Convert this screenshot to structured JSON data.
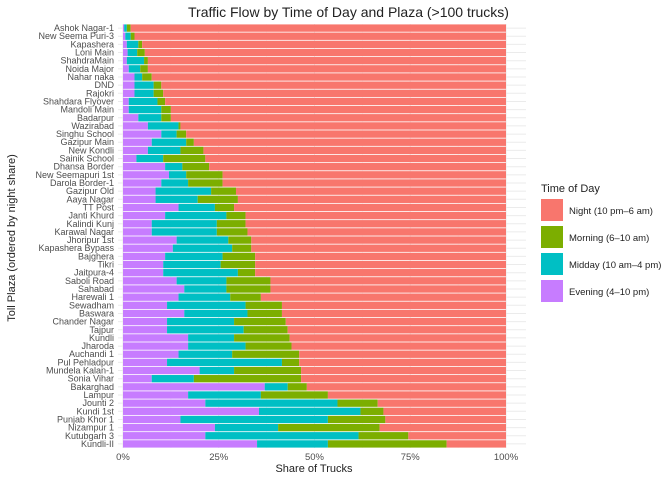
{
  "chart_data": {
    "type": "bar",
    "orientation": "horizontal",
    "stacked": true,
    "title": "Traffic Flow by Time of Day and Plaza (>100 trucks)",
    "xlabel": "Share of Trucks",
    "ylabel": "Toll Plaza (ordered by night share)",
    "xlim": [
      0,
      1
    ],
    "xticks": [
      0,
      0.25,
      0.5,
      0.75,
      1
    ],
    "xtick_labels": [
      "0%",
      "25%",
      "50%",
      "75%",
      "100%"
    ],
    "grid": true,
    "legend": {
      "title": "Time of Day",
      "position": "right"
    },
    "series_order": [
      "Evening",
      "Midday",
      "Morning",
      "Night"
    ],
    "series": [
      {
        "key": "Night",
        "name": "Night (10 pm–6 am)",
        "color": "#F8766D"
      },
      {
        "key": "Morning",
        "name": "Morning (6–10 am)",
        "color": "#7CAE00"
      },
      {
        "key": "Midday",
        "name": "Midday (10 am–4 pm)",
        "color": "#00BFC4"
      },
      {
        "key": "Evening",
        "name": "Evening (4–10 pm)",
        "color": "#C77CFF"
      }
    ],
    "categories": [
      "Ashok Nagar-1",
      "New Seema Puri-3",
      "Kapashera",
      "Loni Main",
      "ShahdraMain",
      "Noida Major",
      "Nahar naka",
      "DND",
      "Rajokri",
      "Shahdara Flyover",
      "Mandoli Main",
      "Badarpur",
      "Wazirabad",
      "Singhu School",
      "Gazipur Main",
      "New Kondli",
      "Sainik School",
      "Dhansa Border",
      "New Seemapuri 1st",
      "Darola Border-1",
      "Gazipur Old",
      "Aaya Nagar",
      "TT Post",
      "Janti Khurd",
      "Kalindi Kunj",
      "Karawal Nagar",
      "Jhoripur 1st",
      "Kapashera Bypass",
      "Bajghera",
      "Tikri",
      "Jaitpura-4",
      "Saboli Road",
      "Sahabad",
      "Harewali 1",
      "Sewadham",
      "Baswara",
      "Chander Nagar",
      "Tajpur",
      "Kundli",
      "Jharoda",
      "Auchandi 1",
      "Pul Pehladpur",
      "Mundela Kalan-1",
      "Sonia Vihar",
      "Bakarghad",
      "Lampur",
      "Jounti 2",
      "Kundi 1st",
      "Punjab Khor 1",
      "Nizampur 1",
      "Kutubgarh 3",
      "Kundli-II"
    ],
    "values": {
      "Evening": [
        0.003,
        0.006,
        0.01,
        0.012,
        0.01,
        0.015,
        0.03,
        0.03,
        0.03,
        0.015,
        0.015,
        0.04,
        0.065,
        0.1,
        0.075,
        0.065,
        0.035,
        0.11,
        0.12,
        0.1,
        0.085,
        0.085,
        0.145,
        0.11,
        0.075,
        0.075,
        0.14,
        0.13,
        0.11,
        0.105,
        0.105,
        0.14,
        0.16,
        0.145,
        0.115,
        0.16,
        0.115,
        0.115,
        0.17,
        0.17,
        0.145,
        0.115,
        0.2,
        0.075,
        0.37,
        0.17,
        0.215,
        0.355,
        0.15,
        0.24,
        0.215,
        0.35
      ],
      "Midday": [
        0.007,
        0.014,
        0.03,
        0.025,
        0.045,
        0.03,
        0.02,
        0.05,
        0.05,
        0.075,
        0.085,
        0.06,
        0.08,
        0.04,
        0.09,
        0.085,
        0.07,
        0.045,
        0.045,
        0.07,
        0.145,
        0.11,
        0.095,
        0.16,
        0.17,
        0.17,
        0.135,
        0.155,
        0.15,
        0.15,
        0.195,
        0.13,
        0.11,
        0.135,
        0.205,
        0.165,
        0.175,
        0.2,
        0.12,
        0.15,
        0.14,
        0.3,
        0.09,
        0.11,
        0.06,
        0.19,
        0.345,
        0.265,
        0.385,
        0.165,
        0.4,
        0.185
      ],
      "Morning": [
        0.01,
        0.01,
        0.01,
        0.02,
        0.01,
        0.02,
        0.025,
        0.02,
        0.025,
        0.02,
        0.025,
        0.025,
        0.005,
        0.025,
        0.02,
        0.06,
        0.11,
        0.07,
        0.095,
        0.09,
        0.065,
        0.105,
        0.05,
        0.05,
        0.075,
        0.08,
        0.06,
        0.05,
        0.085,
        0.09,
        0.045,
        0.115,
        0.115,
        0.08,
        0.095,
        0.09,
        0.135,
        0.115,
        0.145,
        0.12,
        0.175,
        0.045,
        0.175,
        0.28,
        0.05,
        0.175,
        0.105,
        0.06,
        0.15,
        0.265,
        0.13,
        0.31
      ]
    },
    "night_share_rule": "remainder to 100%"
  }
}
